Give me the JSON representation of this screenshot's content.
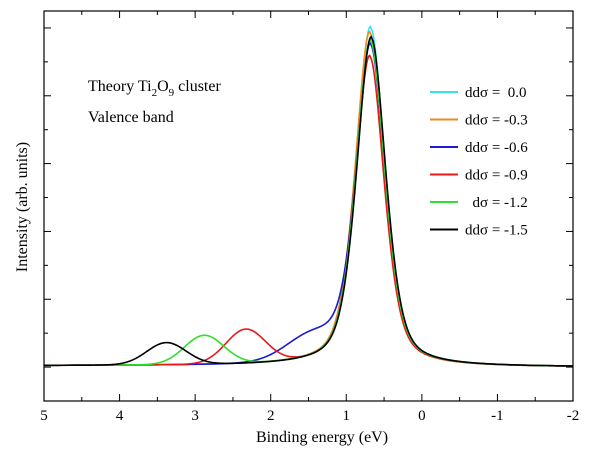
{
  "chart_data": {
    "type": "line",
    "title": "",
    "xlabel": "Binding energy (eV)",
    "ylabel": "Intensity (arb. units)",
    "xlim": [
      5,
      -2
    ],
    "ylim": [
      -0.1,
      1.05
    ],
    "x_reversed": true,
    "y_ticks_labeled": false,
    "grid": false,
    "legend_placement": "right",
    "xticks": [
      5,
      4,
      3,
      2,
      1,
      0,
      -1,
      -2
    ],
    "xtick_labels": [
      "5",
      "4",
      "3",
      "2",
      "1",
      "0",
      "-1",
      "-2"
    ],
    "annotations": {
      "title_prefix": "Theory Ti",
      "sub1": "2",
      "title_mid": "O",
      "sub2": "9",
      "title_suffix": " cluster",
      "line2": "Valence band"
    },
    "series": [
      {
        "name": "ddσ =  0.0",
        "color": "#33e6ee",
        "peak": 1.0,
        "center": 0.68,
        "satellite": null,
        "shoulder": 0.0
      },
      {
        "name": "ddσ = -0.3",
        "color": "#ee8a22",
        "peak": 0.985,
        "center": 0.69,
        "satellite": null,
        "shoulder": 0.0
      },
      {
        "name": "ddσ = -0.6",
        "color": "#1a1ad0",
        "peak": 0.945,
        "center": 0.68,
        "satellite": null,
        "shoulder": 0.07
      },
      {
        "name": "ddσ = -0.9",
        "color": "#e81818",
        "peak": 0.915,
        "center": 0.69,
        "satellite": {
          "center": 2.33,
          "height": 0.1
        },
        "shoulder": 0.0
      },
      {
        "name": "  dσ = -1.2",
        "color": "#2ee02e",
        "peak": 0.96,
        "center": 0.68,
        "satellite": {
          "center": 2.88,
          "height": 0.085
        },
        "shoulder": 0.0
      },
      {
        "name": "ddσ = -1.5",
        "color": "#000000",
        "peak": 0.97,
        "center": 0.67,
        "satellite": {
          "center": 3.38,
          "height": 0.065
        },
        "shoulder": 0.0
      }
    ]
  }
}
